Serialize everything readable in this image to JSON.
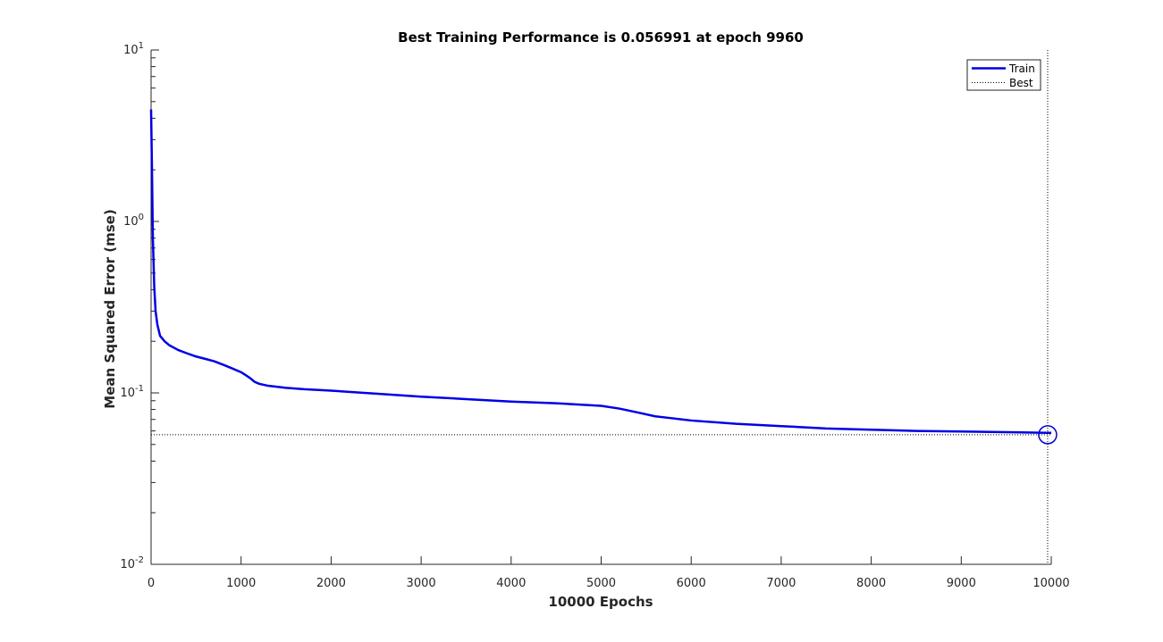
{
  "chart_data": {
    "type": "line",
    "title": "Best Training Performance is 0.056991 at epoch 9960",
    "xlabel": "10000 Epochs",
    "ylabel": "Mean Squared Error  (mse)",
    "xlim": [
      0,
      10000
    ],
    "ylim": [
      0.01,
      10
    ],
    "yscale": "log",
    "grid": false,
    "legend_position": "top-right",
    "x_ticks": [
      0,
      1000,
      2000,
      3000,
      4000,
      5000,
      6000,
      7000,
      8000,
      9000,
      10000
    ],
    "x_tick_labels": [
      "0",
      "1000",
      "2000",
      "3000",
      "4000",
      "5000",
      "6000",
      "7000",
      "8000",
      "9000",
      "10000"
    ],
    "y_ticks": [
      {
        "value": 0.01,
        "base": "10",
        "exp": "-2"
      },
      {
        "value": 0.1,
        "base": "10",
        "exp": "-1"
      },
      {
        "value": 1,
        "base": "10",
        "exp": "0"
      },
      {
        "value": 10,
        "base": "10",
        "exp": "1"
      }
    ],
    "series": [
      {
        "name": "Train",
        "color": "#0000e6",
        "style": "solid",
        "x": [
          0,
          10,
          20,
          35,
          50,
          70,
          100,
          150,
          200,
          300,
          400,
          500,
          600,
          700,
          800,
          900,
          1000,
          1050,
          1100,
          1150,
          1200,
          1300,
          1500,
          1700,
          2000,
          2500,
          3000,
          3500,
          4000,
          4500,
          5000,
          5200,
          5400,
          5600,
          5800,
          6000,
          6500,
          7000,
          7500,
          8000,
          8500,
          9000,
          9500,
          9960,
          10000
        ],
        "y": [
          4.5,
          2.0,
          0.8,
          0.42,
          0.3,
          0.25,
          0.215,
          0.2,
          0.19,
          0.178,
          0.17,
          0.163,
          0.158,
          0.153,
          0.146,
          0.139,
          0.132,
          0.127,
          0.122,
          0.116,
          0.113,
          0.11,
          0.107,
          0.105,
          0.103,
          0.099,
          0.095,
          0.092,
          0.089,
          0.087,
          0.084,
          0.081,
          0.077,
          0.073,
          0.071,
          0.069,
          0.066,
          0.064,
          0.062,
          0.061,
          0.06,
          0.0595,
          0.059,
          0.0585,
          0.0585
        ]
      },
      {
        "name": "Best",
        "color": "#000000",
        "style": "dotted",
        "y_value": 0.056991,
        "x_value": 9960
      }
    ],
    "best_marker": {
      "x": 9960,
      "y": 0.056991,
      "color": "#0000cc"
    }
  },
  "legend": {
    "items": [
      {
        "label": "Train",
        "color": "#0000e6",
        "style": "solid"
      },
      {
        "label": "Best",
        "color": "#000000",
        "style": "dotted"
      }
    ]
  }
}
